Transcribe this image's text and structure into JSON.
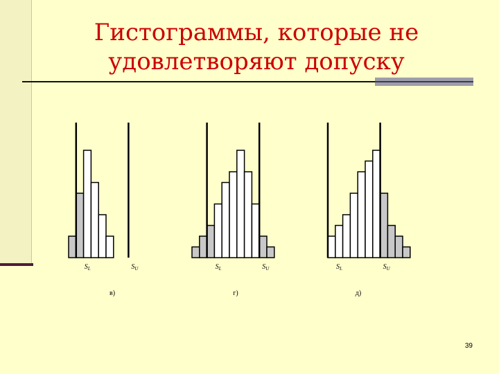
{
  "slide": {
    "title_line1": "Гистограммы, которые не",
    "title_line2": "удовлетворяют допуску",
    "page_number": "39"
  },
  "colors": {
    "background": "#ffffcc",
    "title": "#cc0000",
    "bar_out_of_tolerance": "#c8c8c8",
    "bar_in_tolerance": "#ffffff",
    "lines": "#000000"
  },
  "histograms": [
    {
      "caption": "в)",
      "lower_limit_label": "SL",
      "upper_limit_label": "SU",
      "bars": [
        {
          "height": 2,
          "out_of_tolerance": true
        },
        {
          "height": 6,
          "out_of_tolerance": true
        },
        {
          "height": 10,
          "out_of_tolerance": false
        },
        {
          "height": 7,
          "out_of_tolerance": false
        },
        {
          "height": 4,
          "out_of_tolerance": false
        },
        {
          "height": 2,
          "out_of_tolerance": false
        }
      ],
      "lower_limit_after_bar": 1,
      "upper_limit_after_bar": 8
    },
    {
      "caption": "г)",
      "lower_limit_label": "SL",
      "upper_limit_label": "SU",
      "bars": [
        {
          "height": 1,
          "out_of_tolerance": true
        },
        {
          "height": 2,
          "out_of_tolerance": true
        },
        {
          "height": 3,
          "out_of_tolerance": true
        },
        {
          "height": 5,
          "out_of_tolerance": false
        },
        {
          "height": 7,
          "out_of_tolerance": false
        },
        {
          "height": 8,
          "out_of_tolerance": false
        },
        {
          "height": 10,
          "out_of_tolerance": false
        },
        {
          "height": 8,
          "out_of_tolerance": false
        },
        {
          "height": 5,
          "out_of_tolerance": false
        },
        {
          "height": 2,
          "out_of_tolerance": true
        },
        {
          "height": 1,
          "out_of_tolerance": true
        }
      ],
      "lower_limit_after_bar": 2,
      "upper_limit_after_bar": 9
    },
    {
      "caption": "д)",
      "lower_limit_label": "SL",
      "upper_limit_label": "SU",
      "bars": [
        {
          "height": 2,
          "out_of_tolerance": false
        },
        {
          "height": 3,
          "out_of_tolerance": false
        },
        {
          "height": 4,
          "out_of_tolerance": false
        },
        {
          "height": 6,
          "out_of_tolerance": false
        },
        {
          "height": 8,
          "out_of_tolerance": false
        },
        {
          "height": 9,
          "out_of_tolerance": false
        },
        {
          "height": 10,
          "out_of_tolerance": false
        },
        {
          "height": 6,
          "out_of_tolerance": true
        },
        {
          "height": 3,
          "out_of_tolerance": true
        },
        {
          "height": 2,
          "out_of_tolerance": true
        },
        {
          "height": 1,
          "out_of_tolerance": true
        }
      ],
      "lower_limit_after_bar": 0,
      "upper_limit_after_bar": 7
    }
  ]
}
